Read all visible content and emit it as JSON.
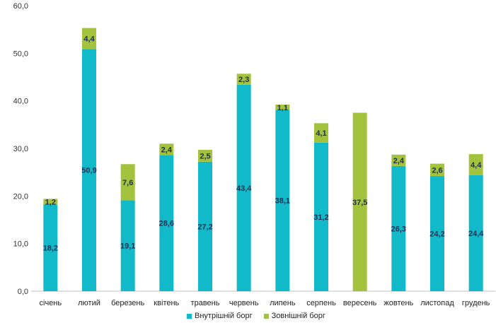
{
  "chart_data": {
    "type": "bar",
    "stacked": true,
    "categories": [
      "січень",
      "лютий",
      "березень",
      "квітень",
      "травень",
      "червень",
      "липень",
      "серпень",
      "вересень",
      "жовтень",
      "листопад",
      "грудень"
    ],
    "series": [
      {
        "name": "Внутрішній борг",
        "color": "#12b9c8",
        "values": [
          18.2,
          50.9,
          19.1,
          28.6,
          27.2,
          43.4,
          38.1,
          31.2,
          0,
          26.3,
          24.2,
          24.4
        ],
        "labels": [
          "18,2",
          "50,9",
          "19,1",
          "28,6",
          "27,2",
          "43,4",
          "38,1",
          "31,2",
          "",
          "26,3",
          "24,2",
          "24,4"
        ]
      },
      {
        "name": "Зовнішній борг",
        "color": "#a3c33e",
        "values": [
          1.2,
          4.4,
          7.6,
          2.4,
          2.5,
          2.3,
          1.1,
          4.1,
          37.5,
          2.4,
          2.6,
          4.4
        ],
        "labels": [
          "1,2",
          "4,4",
          "7,6",
          "2,4",
          "2,5",
          "2,3",
          "1,1",
          "4,1",
          "37,5",
          "2,4",
          "2,6",
          "4,4"
        ]
      }
    ],
    "ylim": [
      0,
      60
    ],
    "yticks": [
      0,
      10,
      20,
      30,
      40,
      50,
      60
    ],
    "ytick_labels": [
      "0,0",
      "10,0",
      "20,0",
      "30,0",
      "40,0",
      "50,0",
      "60,0"
    ],
    "title": "",
    "xlabel": "",
    "ylabel": "",
    "grid": false,
    "legend_position": "bottom"
  }
}
